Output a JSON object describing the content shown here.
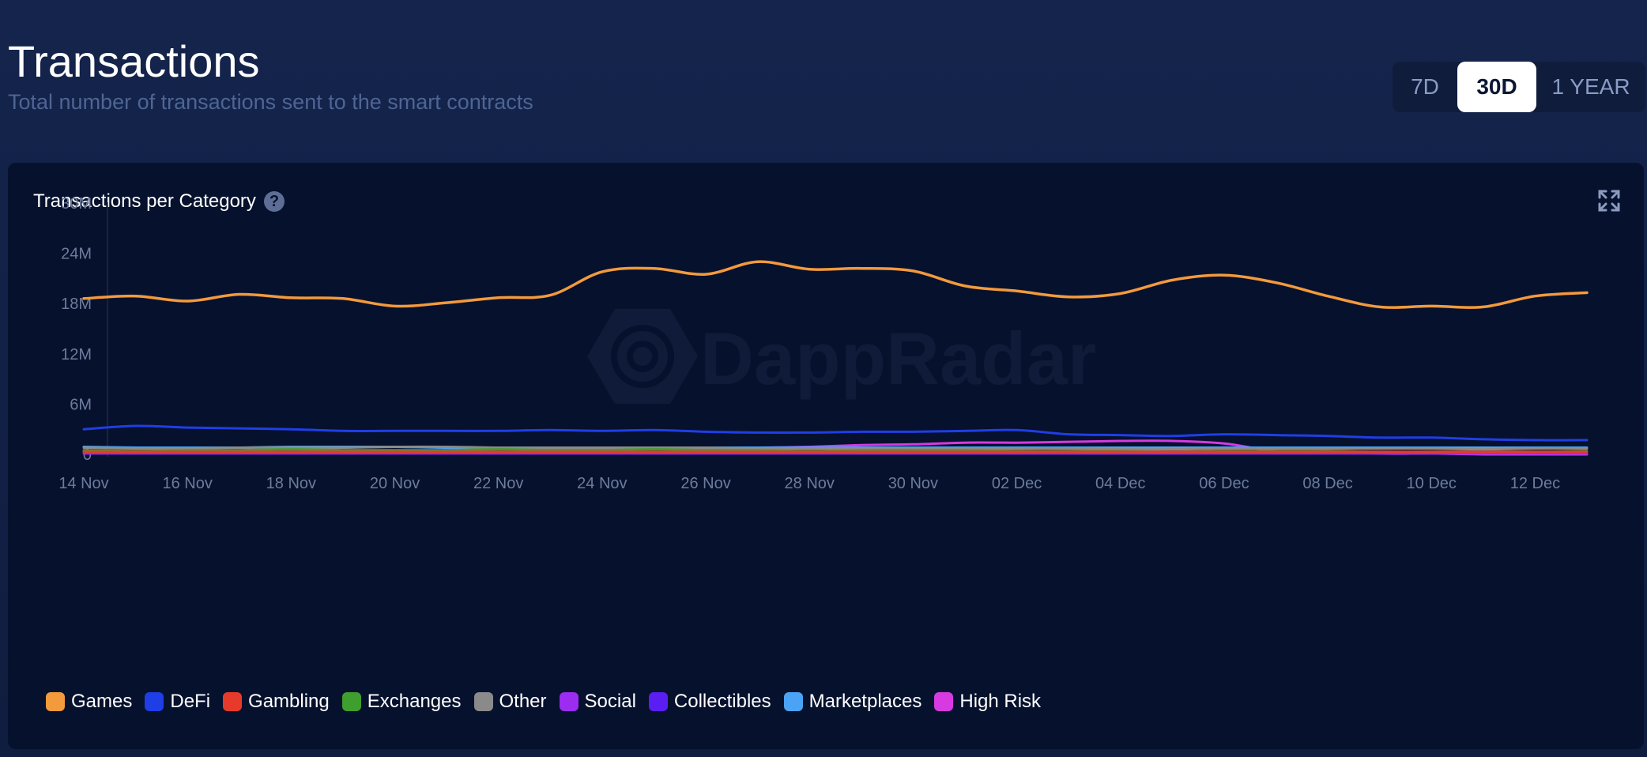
{
  "header": {
    "title": "Transactions",
    "subtitle": "Total number of transactions sent to the smart contracts"
  },
  "range_toggle": {
    "options": [
      "7D",
      "30D",
      "1 YEAR"
    ],
    "selected": "30D"
  },
  "card": {
    "title": "Transactions per Category",
    "help_icon": "question-circle-icon",
    "expand_icon": "expand-arrows-icon",
    "watermark": "DappRadar"
  },
  "colors": {
    "background": "#14244c",
    "card": "#06112d",
    "accent_selected": "#ffffff"
  },
  "chart_data": {
    "type": "line",
    "title": "Transactions per Category",
    "xlabel": "",
    "ylabel": "",
    "ylim": [
      0,
      30000000
    ],
    "y_ticks": [
      0,
      6000000,
      12000000,
      18000000,
      24000000,
      30000000
    ],
    "y_tick_labels": [
      "0",
      "6M",
      "12M",
      "18M",
      "24M",
      "30M"
    ],
    "x_tick_labels": [
      "14 Nov",
      "16 Nov",
      "18 Nov",
      "20 Nov",
      "22 Nov",
      "24 Nov",
      "26 Nov",
      "28 Nov",
      "30 Nov",
      "02 Dec",
      "04 Dec",
      "06 Dec",
      "08 Dec",
      "10 Dec",
      "12 Dec"
    ],
    "x": [
      "14 Nov",
      "15 Nov",
      "16 Nov",
      "17 Nov",
      "18 Nov",
      "19 Nov",
      "20 Nov",
      "21 Nov",
      "22 Nov",
      "23 Nov",
      "24 Nov",
      "25 Nov",
      "26 Nov",
      "27 Nov",
      "28 Nov",
      "29 Nov",
      "30 Nov",
      "01 Dec",
      "02 Dec",
      "03 Dec",
      "04 Dec",
      "05 Dec",
      "06 Dec",
      "07 Dec",
      "08 Dec",
      "09 Dec",
      "10 Dec",
      "11 Dec",
      "12 Dec",
      "13 Dec"
    ],
    "grid": false,
    "legend_position": "bottom-left",
    "series": [
      {
        "name": "Games",
        "color": "#f39a3c",
        "values": [
          18.6,
          18.9,
          18.3,
          19.1,
          18.7,
          18.6,
          17.7,
          18.1,
          18.7,
          19.0,
          21.8,
          22.2,
          21.5,
          23.0,
          22.1,
          22.2,
          21.9,
          20.1,
          19.5,
          18.8,
          19.2,
          20.8,
          21.4,
          20.5,
          18.9,
          17.6,
          17.7,
          17.6,
          18.9,
          19.3
        ]
      },
      {
        "name": "DeFi",
        "color": "#1f3ee6",
        "values": [
          3.0,
          3.4,
          3.2,
          3.1,
          3.0,
          2.8,
          2.8,
          2.8,
          2.8,
          2.9,
          2.8,
          2.9,
          2.7,
          2.6,
          2.6,
          2.7,
          2.7,
          2.8,
          2.9,
          2.4,
          2.3,
          2.2,
          2.4,
          2.3,
          2.2,
          2.0,
          2.0,
          1.8,
          1.7,
          1.7
        ]
      },
      {
        "name": "Gambling",
        "color": "#e83a2a",
        "values": [
          0.3,
          0.3,
          0.3,
          0.3,
          0.3,
          0.3,
          0.3,
          0.3,
          0.3,
          0.3,
          0.3,
          0.3,
          0.3,
          0.3,
          0.3,
          0.3,
          0.3,
          0.3,
          0.3,
          0.3,
          0.3,
          0.3,
          0.3,
          0.3,
          0.3,
          0.3,
          0.3,
          0.3,
          0.3,
          0.3
        ]
      },
      {
        "name": "Exchanges",
        "color": "#3f9f2e",
        "values": [
          0.5,
          0.4,
          0.5,
          0.5,
          0.6,
          0.5,
          0.5,
          0.5,
          0.6,
          0.5,
          0.5,
          0.6,
          0.5,
          0.5,
          0.4,
          0.5,
          0.5,
          0.5,
          0.4,
          0.4,
          0.4,
          0.3,
          0.4,
          0.4,
          0.4,
          0.3,
          0.3,
          0.3,
          0.3,
          0.4
        ]
      },
      {
        "name": "Other",
        "color": "#8a8a8a",
        "values": [
          0.8,
          0.7,
          0.7,
          0.8,
          0.8,
          0.8,
          0.9,
          0.9,
          0.8,
          0.8,
          0.8,
          0.8,
          0.8,
          0.7,
          0.7,
          0.7,
          0.7,
          0.7,
          0.7,
          0.7,
          0.6,
          0.6,
          0.7,
          0.7,
          0.7,
          0.7,
          0.7,
          0.6,
          0.7,
          0.7
        ]
      },
      {
        "name": "Social",
        "color": "#9b2cf0",
        "values": [
          0.1,
          0.1,
          0.1,
          0.1,
          0.1,
          0.1,
          0.1,
          0.1,
          0.1,
          0.1,
          0.1,
          0.1,
          0.1,
          0.1,
          0.1,
          0.1,
          0.1,
          0.1,
          0.1,
          0.1,
          0.1,
          0.1,
          0.1,
          0.1,
          0.1,
          0.1,
          0.1,
          0.1,
          0.1,
          0.1
        ]
      },
      {
        "name": "Collectibles",
        "color": "#5a1ef2",
        "values": [
          0.2,
          0.2,
          0.2,
          0.2,
          0.2,
          0.2,
          0.2,
          0.2,
          0.2,
          0.2,
          0.2,
          0.2,
          0.2,
          0.2,
          0.2,
          0.2,
          0.2,
          0.2,
          0.2,
          0.2,
          0.2,
          0.2,
          0.2,
          0.2,
          0.2,
          0.2,
          0.2,
          0.2,
          0.2,
          0.2
        ]
      },
      {
        "name": "Marketplaces",
        "color": "#4aa3f5",
        "values": [
          0.9,
          0.8,
          0.8,
          0.8,
          0.9,
          0.9,
          0.9,
          0.8,
          0.8,
          0.8,
          0.8,
          0.8,
          0.8,
          0.8,
          0.8,
          0.8,
          0.8,
          0.8,
          0.8,
          0.8,
          0.8,
          0.8,
          0.8,
          0.8,
          0.8,
          0.8,
          0.8,
          0.8,
          0.8,
          0.8
        ]
      },
      {
        "name": "High Risk",
        "color": "#d63ae0",
        "values": [
          0.2,
          0.2,
          0.2,
          0.2,
          0.3,
          0.4,
          0.4,
          0.5,
          0.6,
          0.6,
          0.7,
          0.7,
          0.7,
          0.8,
          0.9,
          1.1,
          1.2,
          1.4,
          1.4,
          1.5,
          1.6,
          1.6,
          1.3,
          0.4,
          0.4,
          0.1,
          0.1,
          0.0,
          0.0,
          0.0
        ]
      }
    ]
  }
}
